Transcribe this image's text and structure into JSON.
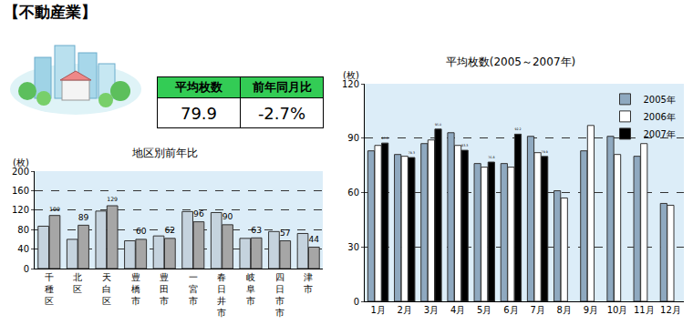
{
  "header": {
    "title": "【不動産業】"
  },
  "summary": {
    "headers": [
      "平均枚数",
      "前年同月比"
    ],
    "values": [
      "79.9",
      "-2.7%"
    ]
  },
  "chart_data": [
    {
      "type": "bar",
      "title": "地区別前年比",
      "ylabel": "(枚)",
      "categories": [
        "千種区",
        "北区",
        "天白区",
        "豊橋市",
        "豊田市",
        "一宮市",
        "春日井市",
        "岐阜市",
        "四日市市",
        "津市"
      ],
      "series": [
        {
          "color": "#c5d3de",
          "values": [
            87,
            60,
            118,
            57,
            67,
            117,
            115,
            62,
            76,
            72
          ]
        },
        {
          "color": "#a6a6a6",
          "values": [
            109,
            89,
            129,
            60,
            62,
            96,
            90,
            63,
            57,
            44
          ],
          "data_labels": true
        }
      ],
      "ylim": [
        0,
        200
      ],
      "yticks": [
        0,
        40,
        80,
        120,
        160,
        200
      ],
      "grid": true
    },
    {
      "type": "bar",
      "title": "平均枚数(2005～2007年)",
      "ylabel": "(枚)",
      "categories": [
        "1月",
        "2月",
        "3月",
        "4月",
        "5月",
        "6月",
        "7月",
        "8月",
        "9月",
        "10月",
        "11月",
        "12月"
      ],
      "series": [
        {
          "name": "2005年",
          "color": "#8fa9c0",
          "values": [
            83,
            81,
            87,
            93,
            76,
            76,
            91,
            61,
            83,
            91,
            80,
            54
          ]
        },
        {
          "name": "2006年",
          "color": "#ffffff",
          "values": [
            86,
            80,
            89,
            86,
            74,
            74,
            82,
            57,
            97,
            81,
            87,
            53
          ]
        },
        {
          "name": "2007年",
          "color": "#000000",
          "values": [
            87.3,
            79.3,
            95.0,
            83.3,
            76.8,
            92.2,
            79.9,
            null,
            null,
            null,
            null,
            null
          ],
          "value_labels": [
            "87.3",
            "79.3",
            "95.0",
            "83.3",
            "76.8",
            "92.2",
            "79.9",
            null,
            null,
            null,
            null,
            null
          ],
          "data_labels": true
        }
      ],
      "ylim": [
        0,
        120
      ],
      "yticks": [
        0,
        30,
        60,
        90,
        120
      ],
      "grid": true,
      "legend": "top right"
    }
  ]
}
